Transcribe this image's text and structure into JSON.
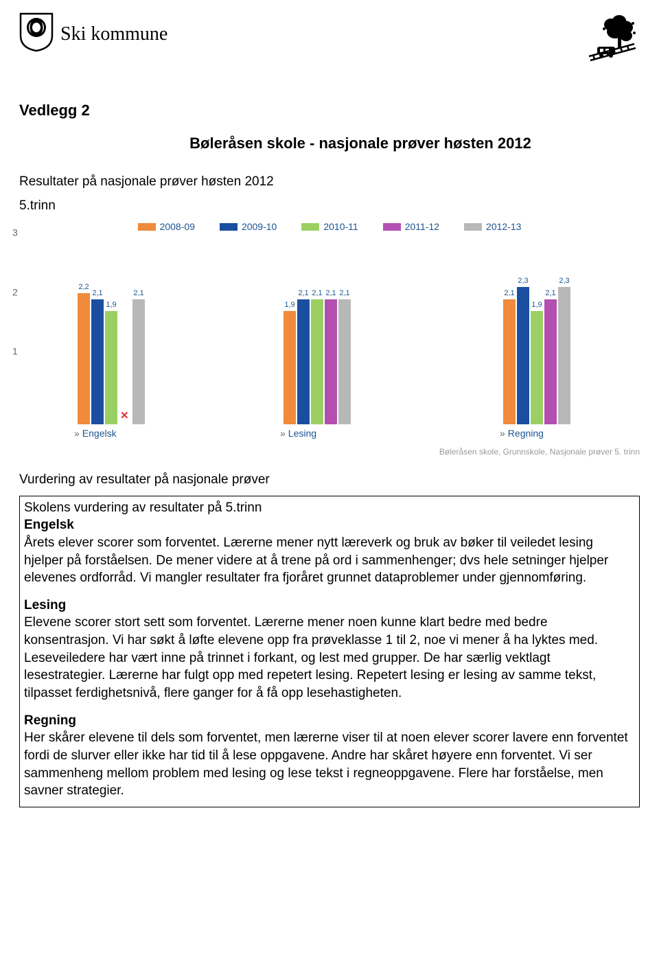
{
  "header": {
    "org_name": "Ski kommune"
  },
  "vedlegg": "Vedlegg 2",
  "main_title": "Bøleråsen skole - nasjonale prøver høsten 2012",
  "subtitle": "Resultater på nasjonale prøver høsten 2012",
  "trinn": "5.trinn",
  "chart": {
    "type": "bar",
    "legend": [
      {
        "label": "2008-09",
        "color": "#f08a3c"
      },
      {
        "label": "2009-10",
        "color": "#1a4fa0"
      },
      {
        "label": "2010-11",
        "color": "#9bcf63"
      },
      {
        "label": "2011-12",
        "color": "#b34fb0"
      },
      {
        "label": "2012-13",
        "color": "#b8b8b8"
      }
    ],
    "ylim": [
      0,
      3
    ],
    "yticks": [
      1,
      2,
      3
    ],
    "axis_color": "#666666",
    "label_color": "#1a5490",
    "groups": [
      {
        "name": "Engelsk",
        "values": [
          2.2,
          2.1,
          1.9,
          null,
          2.1
        ],
        "value_labels": [
          "2,2",
          "2,1",
          "1,9",
          "",
          "2,1"
        ],
        "has_red_x": true
      },
      {
        "name": "Lesing",
        "values": [
          1.9,
          2.1,
          2.1,
          2.1,
          2.1
        ],
        "value_labels": [
          "1,9",
          "2,1",
          "2,1",
          "2,1",
          "2,1"
        ]
      },
      {
        "name": "Regning",
        "values": [
          2.1,
          2.3,
          1.9,
          2.1,
          2.3
        ],
        "value_labels": [
          "2,1",
          "2,3",
          "1,9",
          "2,1",
          "2,3"
        ]
      }
    ],
    "caption": "Bøleråsen skole, Grunnskole, Nasjonale prøver 5. trinn"
  },
  "vurdering_heading": "Vurdering av resultater på nasjonale prøver",
  "box": {
    "heading": "Skolens vurdering av resultater på 5.trinn",
    "sections": [
      {
        "title": "Engelsk",
        "body": "Årets elever scorer som forventet. Lærerne mener nytt læreverk og bruk av bøker til veiledet lesing hjelper på forståelsen. De mener videre at å trene på ord i sammenhenger; dvs hele setninger hjelper elevenes ordforråd. Vi mangler resultater fra fjoråret grunnet dataproblemer under gjennomføring."
      },
      {
        "title": "Lesing",
        "body": "Elevene scorer stort sett som forventet. Lærerne mener noen kunne klart bedre med bedre konsentrasjon. Vi har søkt å løfte elevene opp fra prøveklasse 1 til 2, noe vi mener å ha lyktes med. Leseveiledere har vært inne på trinnet i forkant, og lest med grupper. De har særlig vektlagt lesestrategier. Lærerne har fulgt opp med repetert lesing. Repetert lesing er lesing av samme tekst, tilpasset ferdighetsnivå, flere ganger for å få opp lesehastigheten."
      },
      {
        "title": "Regning",
        "body": "Her skårer elevene til dels som forventet, men lærerne viser til at noen elever scorer lavere enn forventet fordi de slurver eller ikke har tid til å lese oppgavene. Andre har skåret høyere enn forventet. Vi ser sammenheng mellom problem med lesing og lese tekst i regneoppgavene. Flere har forståelse, men savner strategier."
      }
    ]
  }
}
